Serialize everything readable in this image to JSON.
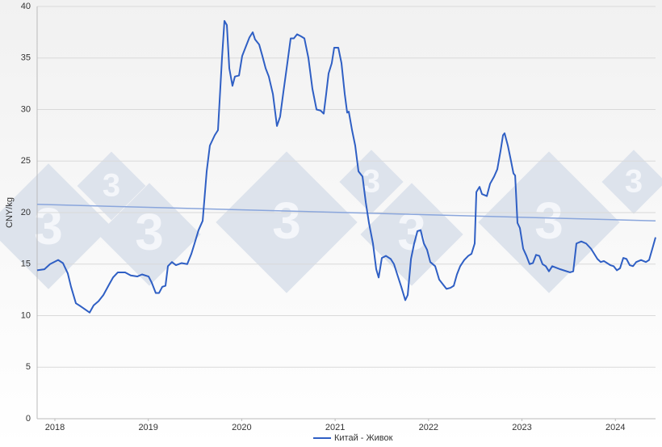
{
  "chart_data": {
    "type": "line",
    "y_label": "CNY/kg",
    "xlim": [
      2017.81,
      2024.43
    ],
    "xticks": [
      2018,
      2019,
      2020,
      2021,
      2022,
      2023,
      2024
    ],
    "ylim": [
      0,
      40
    ],
    "yticks": [
      0,
      5,
      10,
      15,
      20,
      25,
      30,
      35,
      40
    ],
    "grid": true,
    "legend": "bottom",
    "x": [
      2017.81,
      2017.888,
      2017.948,
      2018.035,
      2018.086,
      2018.138,
      2018.173,
      2018.225,
      2018.277,
      2018.372,
      2018.415,
      2018.467,
      2018.519,
      2018.579,
      2018.622,
      2018.674,
      2018.752,
      2018.812,
      2018.882,
      2018.933,
      2019.003,
      2019.037,
      2019.08,
      2019.115,
      2019.15,
      2019.184,
      2019.21,
      2019.253,
      2019.296,
      2019.357,
      2019.417,
      2019.461,
      2019.495,
      2019.538,
      2019.582,
      2019.625,
      2019.659,
      2019.711,
      2019.746,
      2019.789,
      2019.815,
      2019.841,
      2019.867,
      2019.901,
      2019.927,
      2019.971,
      2020.005,
      2020.048,
      2020.083,
      2020.118,
      2020.143,
      2020.187,
      2020.221,
      2020.256,
      2020.29,
      2020.334,
      2020.377,
      2020.411,
      2020.446,
      2020.481,
      2020.524,
      2020.558,
      2020.593,
      2020.636,
      2020.671,
      2020.714,
      2020.757,
      2020.801,
      2020.844,
      2020.878,
      2020.904,
      2020.93,
      2020.964,
      2020.99,
      2021.034,
      2021.068,
      2021.103,
      2021.129,
      2021.146,
      2021.181,
      2021.215,
      2021.25,
      2021.293,
      2021.328,
      2021.362,
      2021.405,
      2021.44,
      2021.466,
      2021.5,
      2021.544,
      2021.595,
      2021.63,
      2021.665,
      2021.708,
      2021.751,
      2021.777,
      2021.812,
      2021.846,
      2021.881,
      2021.915,
      2021.95,
      2021.984,
      2022.019,
      2022.071,
      2022.114,
      2022.157,
      2022.192,
      2022.235,
      2022.27,
      2022.304,
      2022.339,
      2022.382,
      2022.425,
      2022.46,
      2022.494,
      2022.512,
      2022.546,
      2022.572,
      2022.624,
      2022.659,
      2022.702,
      2022.736,
      2022.771,
      2022.797,
      2022.814,
      2022.849,
      2022.883,
      2022.909,
      2022.927,
      2022.952,
      2022.978,
      2023.013,
      2023.048,
      2023.082,
      2023.117,
      2023.151,
      2023.186,
      2023.22,
      2023.255,
      2023.289,
      2023.324,
      2023.411,
      2023.514,
      2023.549,
      2023.583,
      2023.635,
      2023.687,
      2023.739,
      2023.808,
      2023.843,
      2023.877,
      2023.946,
      2023.981,
      2024.016,
      2024.05,
      2024.085,
      2024.119,
      2024.154,
      2024.189,
      2024.223,
      2024.275,
      2024.327,
      2024.361,
      2024.396,
      2024.43
    ],
    "series": [
      {
        "name": "Китай - Живок",
        "color": "#2f5fc4",
        "values": [
          14.4,
          14.5,
          15.0,
          15.4,
          15.1,
          14.1,
          12.8,
          11.2,
          10.9,
          10.3,
          11.0,
          11.4,
          12.0,
          13.0,
          13.7,
          14.2,
          14.2,
          13.9,
          13.8,
          14.0,
          13.8,
          13.2,
          12.2,
          12.2,
          12.8,
          12.9,
          14.8,
          15.2,
          14.9,
          15.1,
          15.0,
          16.0,
          17.0,
          18.3,
          19.2,
          24.0,
          26.5,
          27.5,
          28.0,
          35.0,
          38.6,
          38.2,
          34.0,
          32.3,
          33.2,
          33.3,
          35.2,
          36.2,
          37.0,
          37.5,
          36.8,
          36.3,
          35.2,
          34.0,
          33.2,
          31.5,
          28.4,
          29.3,
          31.7,
          34.0,
          36.9,
          36.9,
          37.3,
          37.1,
          36.9,
          35.0,
          32.0,
          30.0,
          29.9,
          29.6,
          31.5,
          33.5,
          34.5,
          36.0,
          36.0,
          34.5,
          31.5,
          29.7,
          29.8,
          28.0,
          26.5,
          24.0,
          23.5,
          21.0,
          19.0,
          17.0,
          14.5,
          13.7,
          15.6,
          15.8,
          15.5,
          15.0,
          14.0,
          12.8,
          11.5,
          12.0,
          15.5,
          17.0,
          18.2,
          18.3,
          17.0,
          16.4,
          15.2,
          14.8,
          13.5,
          13.0,
          12.6,
          12.7,
          12.9,
          14.0,
          14.8,
          15.4,
          15.8,
          16.0,
          17.0,
          22.0,
          22.5,
          21.8,
          21.6,
          22.8,
          23.5,
          24.2,
          26.0,
          27.5,
          27.7,
          26.5,
          25.0,
          23.8,
          23.6,
          19.0,
          18.5,
          16.5,
          15.8,
          15.0,
          15.1,
          15.9,
          15.8,
          15.0,
          14.8,
          14.3,
          14.8,
          14.5,
          14.2,
          14.3,
          17.0,
          17.2,
          17.0,
          16.5,
          15.5,
          15.2,
          15.3,
          14.9,
          14.8,
          14.4,
          14.6,
          15.6,
          15.5,
          14.9,
          14.8,
          15.2,
          15.4,
          15.2,
          15.4,
          16.5,
          17.6
        ]
      }
    ],
    "trendline": {
      "x": [
        2017.81,
        2024.43
      ],
      "values": [
        20.8,
        19.2
      ],
      "color": "#8aa6dc"
    }
  }
}
